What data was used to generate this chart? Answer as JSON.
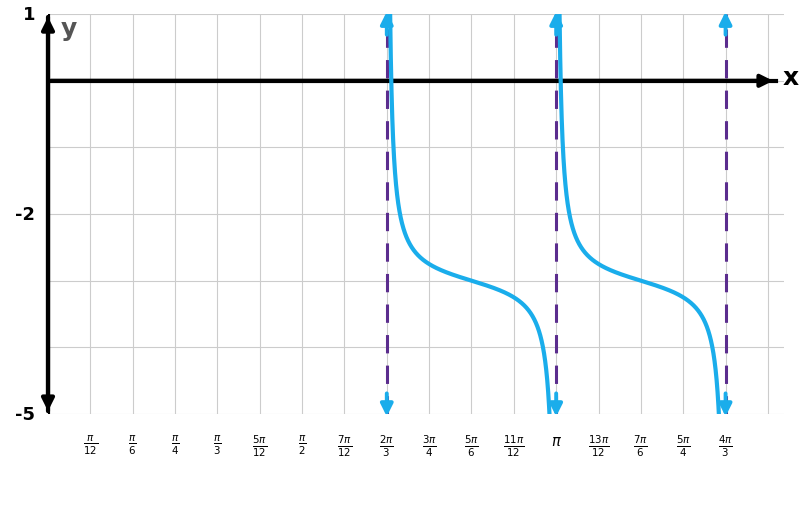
{
  "xlim_min": 0.0,
  "xlim_max": 4.55,
  "ylim_min": -5.0,
  "ylim_max": 1.0,
  "curve_color": "#1AADEB",
  "asymptote_color": "#5B2D8E",
  "axis_color": "#000000",
  "grid_color": "#CCCCCC",
  "background_color": "#FFFFFF",
  "curve_linewidth": 3.0,
  "asymptote_linewidth": 2.2,
  "axis_linewidth": 3.0
}
